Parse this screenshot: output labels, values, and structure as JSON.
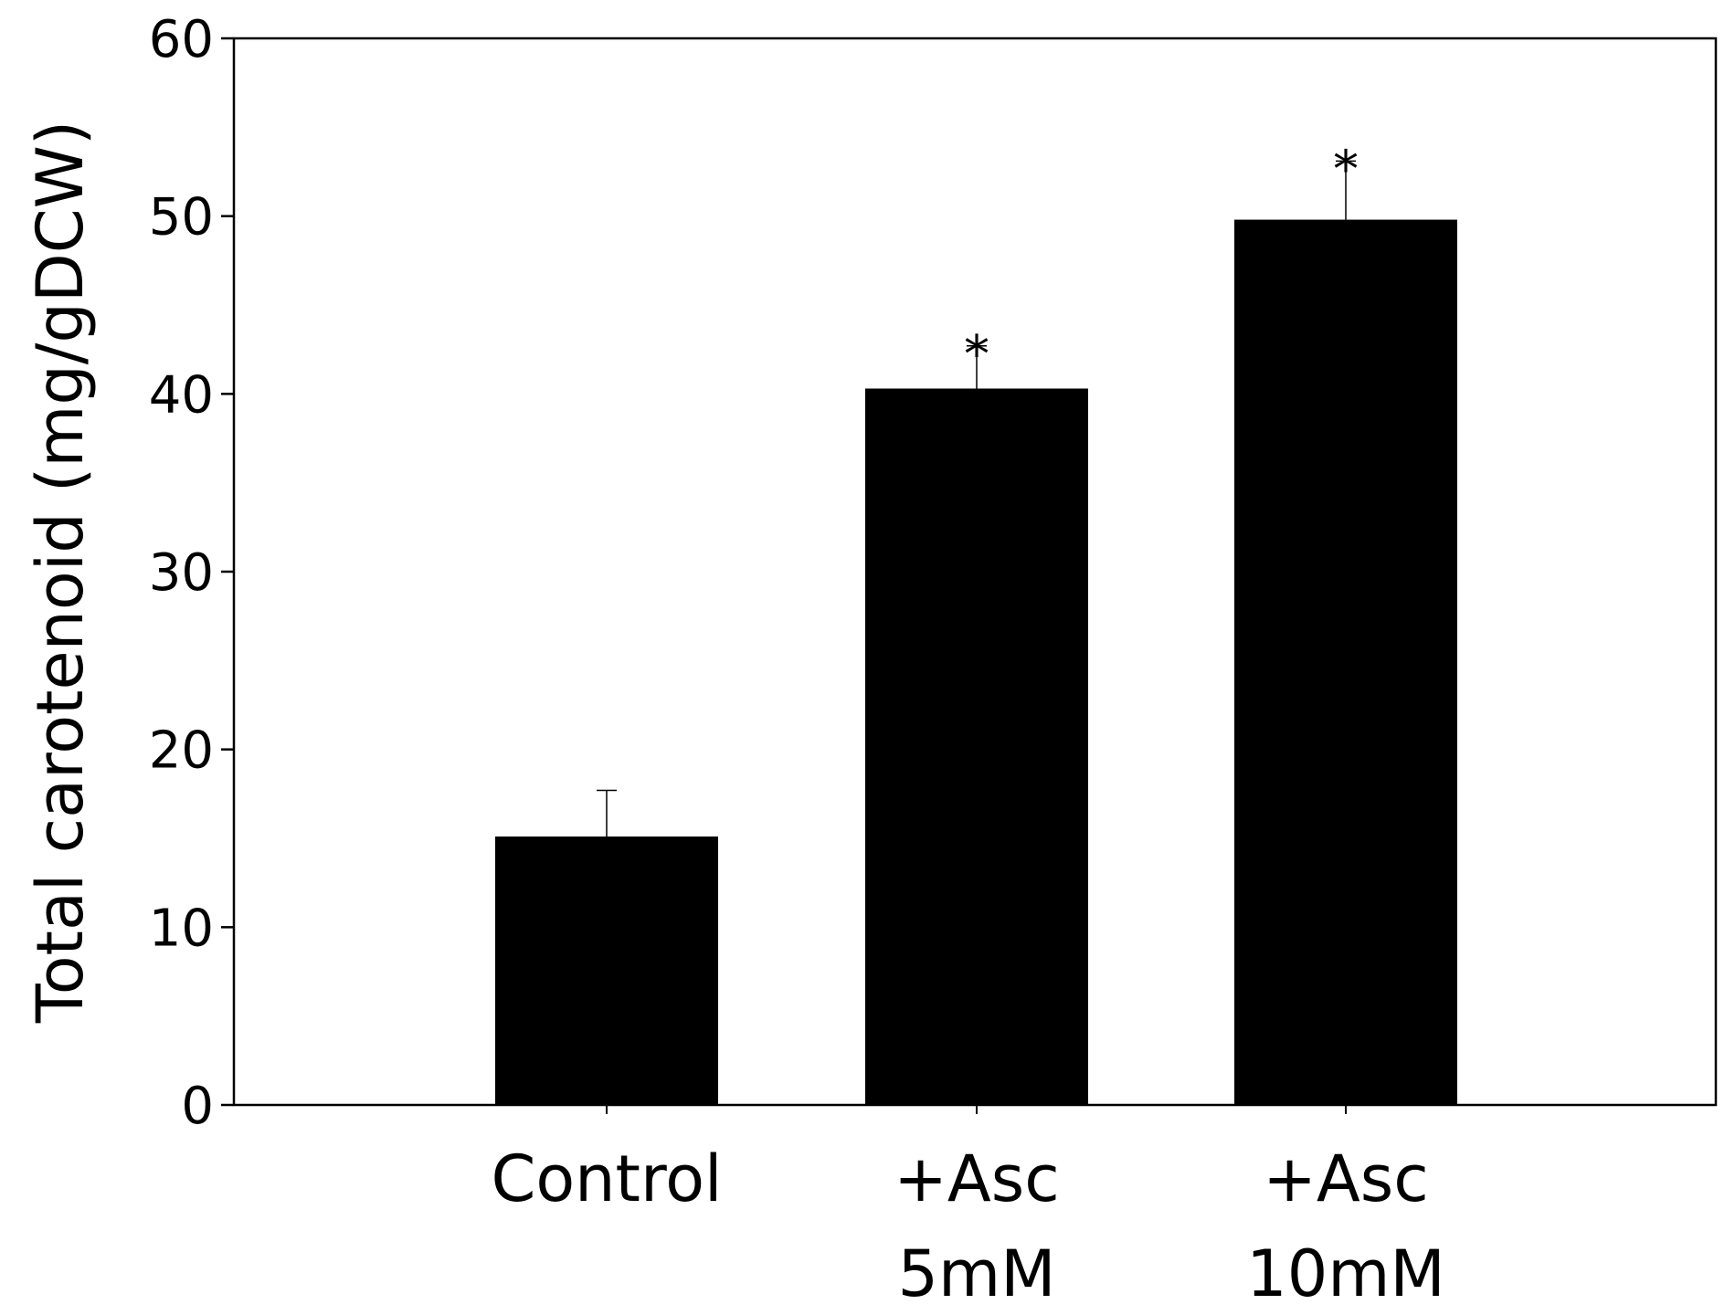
{
  "chart_data": {
    "type": "bar",
    "categories": [
      [
        "Control"
      ],
      [
        "+Asc",
        "5mM"
      ],
      [
        "+Asc",
        "10mM"
      ]
    ],
    "values": [
      15.1,
      40.3,
      49.8
    ],
    "errors": [
      2.6,
      2.4,
      3.3
    ],
    "significance": [
      "",
      "*",
      "*"
    ],
    "ylabel": "Total carotenoid (mg/gDCW)",
    "xlabel": "",
    "title": "",
    "ylim": [
      0,
      60
    ],
    "yticks": [
      0,
      10,
      20,
      30,
      40,
      50,
      60
    ],
    "bar_color": "#000000",
    "grid": false
  }
}
